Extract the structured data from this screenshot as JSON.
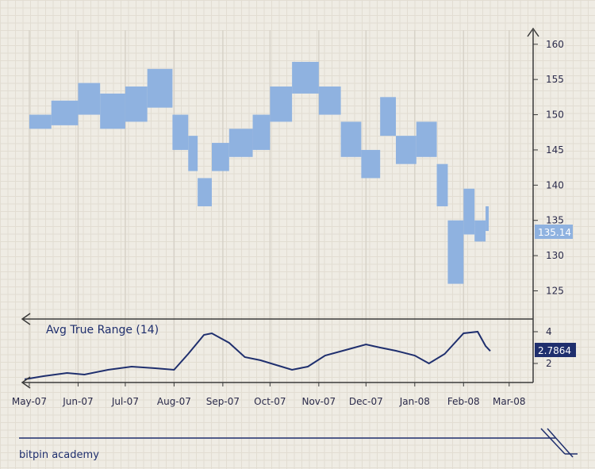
{
  "chart_data": [
    {
      "type": "ohlc",
      "panel": "price",
      "y_ticks": [
        125,
        130,
        135,
        140,
        145,
        150,
        155,
        160
      ],
      "ylim": [
        121,
        162
      ],
      "x_ticks": [
        "May-07",
        "Jun-07",
        "Jul-07",
        "Aug-07",
        "Sep-07",
        "Oct-07",
        "Nov-07",
        "Dec-07",
        "Jan-08",
        "Feb-08",
        "Mar-08"
      ],
      "last_value_label": "135.14",
      "color": "#8fb2e0",
      "series": [
        {
          "date": "2007-05-01",
          "high": 150.0,
          "low": 148.0
        },
        {
          "date": "2007-05-15",
          "high": 152.0,
          "low": 148.5
        },
        {
          "date": "2007-06-01",
          "high": 154.5,
          "low": 150.0
        },
        {
          "date": "2007-06-15",
          "high": 153.0,
          "low": 148.0
        },
        {
          "date": "2007-07-01",
          "high": 154.0,
          "low": 149.0
        },
        {
          "date": "2007-07-15",
          "high": 156.5,
          "low": 151.0
        },
        {
          "date": "2007-07-31",
          "high": 150.0,
          "low": 145.0
        },
        {
          "date": "2007-08-10",
          "high": 147.0,
          "low": 142.0
        },
        {
          "date": "2007-08-16",
          "high": 141.0,
          "low": 137.0
        },
        {
          "date": "2007-08-25",
          "high": 146.0,
          "low": 142.0
        },
        {
          "date": "2007-09-05",
          "high": 148.0,
          "low": 144.0
        },
        {
          "date": "2007-09-20",
          "high": 150.0,
          "low": 145.0
        },
        {
          "date": "2007-10-01",
          "high": 154.0,
          "low": 149.0
        },
        {
          "date": "2007-10-15",
          "high": 157.5,
          "low": 153.0
        },
        {
          "date": "2007-11-01",
          "high": 154.0,
          "low": 150.0
        },
        {
          "date": "2007-11-15",
          "high": 149.0,
          "low": 144.0
        },
        {
          "date": "2007-11-28",
          "high": 145.0,
          "low": 141.0
        },
        {
          "date": "2007-12-10",
          "high": 152.5,
          "low": 147.0
        },
        {
          "date": "2007-12-20",
          "high": 147.0,
          "low": 143.0
        },
        {
          "date": "2008-01-02",
          "high": 149.0,
          "low": 144.0
        },
        {
          "date": "2008-01-15",
          "high": 143.0,
          "low": 137.0
        },
        {
          "date": "2008-01-22",
          "high": 135.0,
          "low": 126.0
        },
        {
          "date": "2008-02-01",
          "high": 139.5,
          "low": 133.0
        },
        {
          "date": "2008-02-08",
          "high": 135.0,
          "low": 132.0
        },
        {
          "date": "2008-02-15",
          "high": 137.0,
          "low": 133.5
        }
      ]
    },
    {
      "type": "line",
      "panel": "indicator",
      "title": "Avg True Range (14)",
      "y_ticks": [
        2,
        4
      ],
      "ylim": [
        0.8,
        4.8
      ],
      "last_value_label": "2.7864",
      "color": "#1f2f6e",
      "points": [
        [
          "2007-04-28",
          1.0
        ],
        [
          "2007-05-10",
          1.2
        ],
        [
          "2007-05-25",
          1.4
        ],
        [
          "2007-06-05",
          1.3
        ],
        [
          "2007-06-20",
          1.6
        ],
        [
          "2007-07-05",
          1.8
        ],
        [
          "2007-07-20",
          1.7
        ],
        [
          "2007-08-01",
          1.6
        ],
        [
          "2007-08-10",
          2.6
        ],
        [
          "2007-08-20",
          3.8
        ],
        [
          "2007-08-25",
          3.9
        ],
        [
          "2007-09-05",
          3.3
        ],
        [
          "2007-09-15",
          2.4
        ],
        [
          "2007-09-25",
          2.2
        ],
        [
          "2007-10-05",
          1.9
        ],
        [
          "2007-10-15",
          1.6
        ],
        [
          "2007-10-25",
          1.8
        ],
        [
          "2007-11-05",
          2.5
        ],
        [
          "2007-11-20",
          2.9
        ],
        [
          "2007-12-01",
          3.2
        ],
        [
          "2007-12-10",
          3.0
        ],
        [
          "2007-12-20",
          2.8
        ],
        [
          "2008-01-01",
          2.5
        ],
        [
          "2008-01-10",
          2.0
        ],
        [
          "2008-01-20",
          2.6
        ],
        [
          "2008-02-01",
          3.9
        ],
        [
          "2008-02-10",
          4.0
        ],
        [
          "2008-02-15",
          3.1
        ],
        [
          "2008-02-18",
          2.7864
        ]
      ]
    }
  ],
  "brand": {
    "text": "bitpin academy"
  },
  "colors": {
    "price": "#8fb2e0",
    "indicator": "#1f2f6e",
    "grid_major": "#d7d2c8",
    "axis": "#3a3a3a"
  }
}
